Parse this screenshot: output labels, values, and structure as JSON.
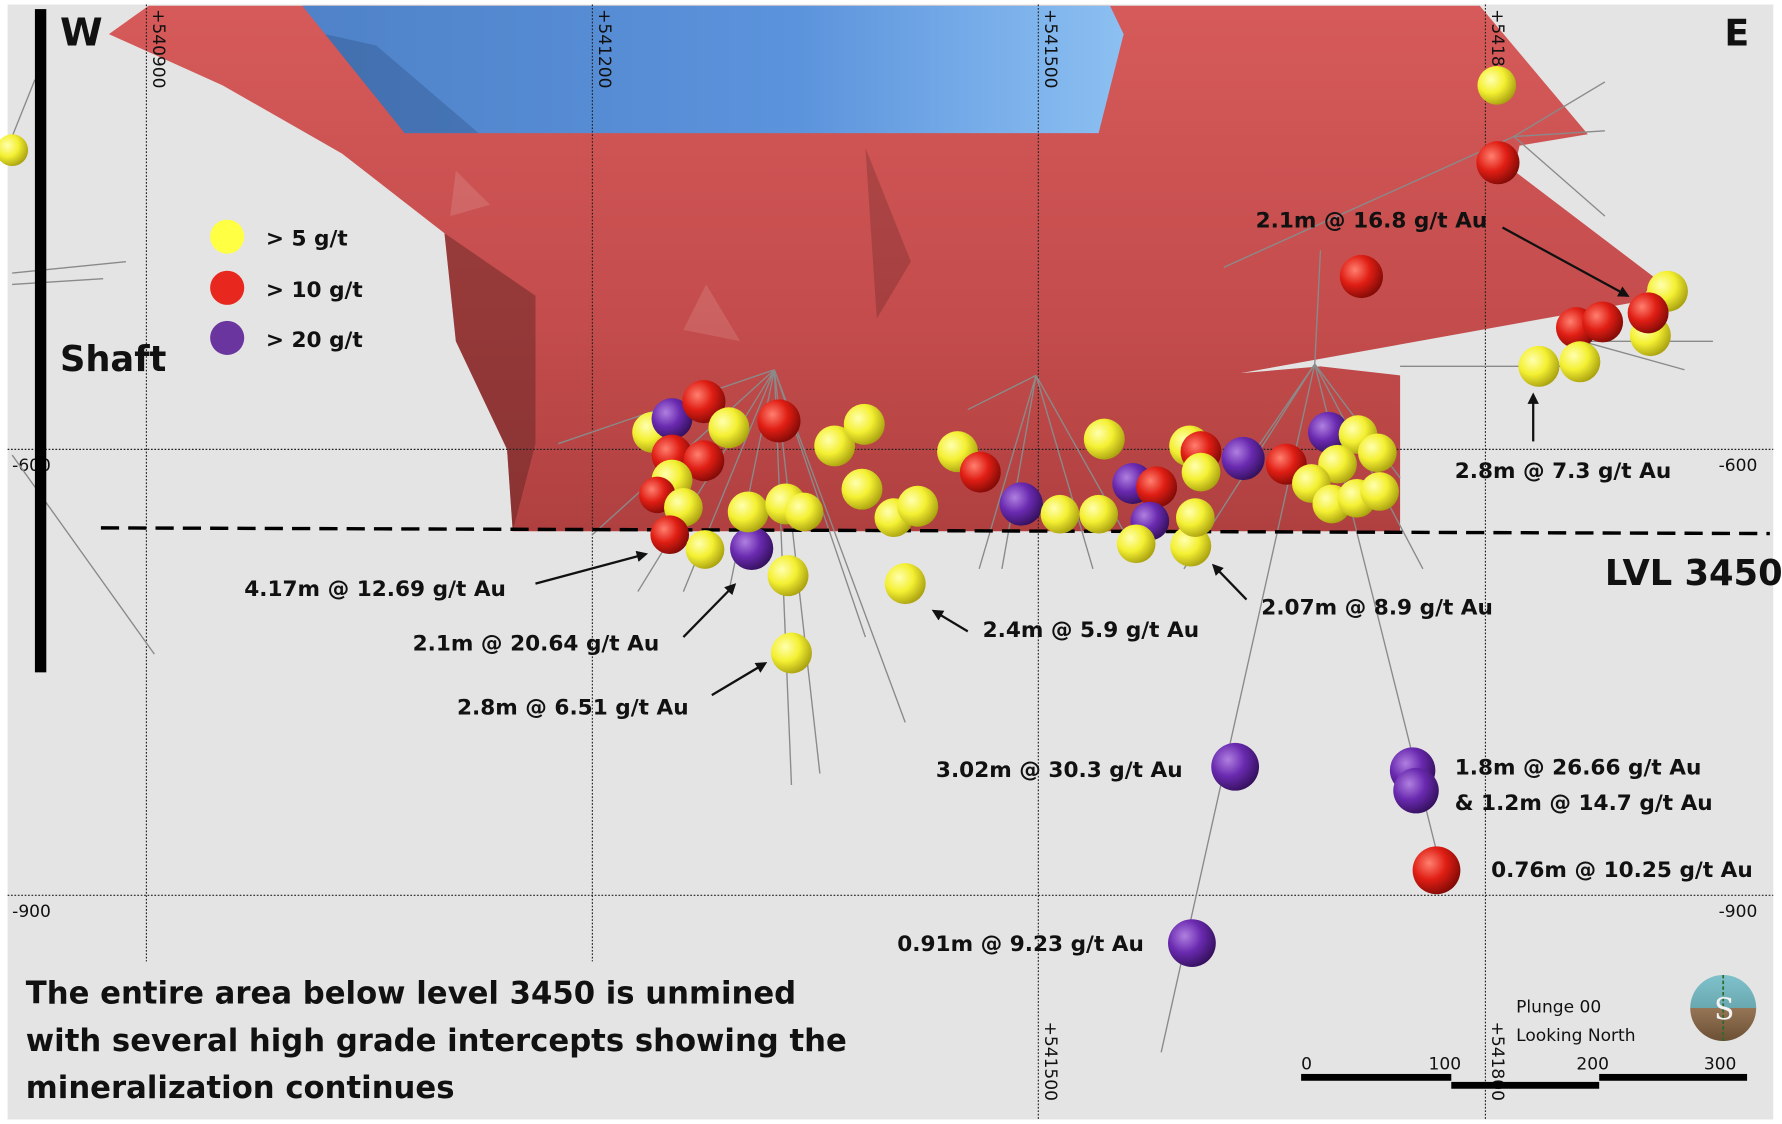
{
  "compass": {
    "west": "W",
    "east": "E"
  },
  "shaft_label": "Shaft",
  "level_label": "LVL 3450",
  "legend": [
    {
      "label": "> 5 g/t",
      "color": "#ffff44"
    },
    {
      "label": "> 10 g/t",
      "color": "#e8281e"
    },
    {
      "label": "> 20 g/t",
      "color": "#6b35a0"
    }
  ],
  "grid": {
    "eastings": [
      "+540900",
      "+541200",
      "+541500",
      "+541800"
    ],
    "elevations": [
      "-600",
      "-900"
    ]
  },
  "intercepts": [
    "2.1m @ 16.8 g/t Au",
    "2.8m @ 7.3 g/t Au",
    "4.17m @ 12.69 g/t Au",
    "2.1m @ 20.64 g/t Au",
    "2.8m @ 6.51 g/t Au",
    "2.4m @ 5.9 g/t Au",
    "2.07m @ 8.9 g/t Au",
    "3.02m @ 30.3 g/t Au",
    "1.8m @ 26.66 g/t Au",
    "& 1.2m @ 14.7 g/t Au",
    "0.76m @ 10.25 g/t Au",
    "0.91m @ 9.23 g/t Au"
  ],
  "caption": [
    "The entire area below level 3450 is unmined",
    "with several high grade intercepts showing the",
    "mineralization continues"
  ],
  "view": {
    "plunge": "Plunge 00",
    "looking": "Looking North",
    "compass_letter": "S"
  },
  "scale_bar": {
    "ticks": [
      "0",
      "100",
      "200",
      "300"
    ]
  },
  "colors": {
    "background": "#e4e4e4",
    "orebody": "#c85050",
    "mined_stope": "#5b8fd6"
  }
}
